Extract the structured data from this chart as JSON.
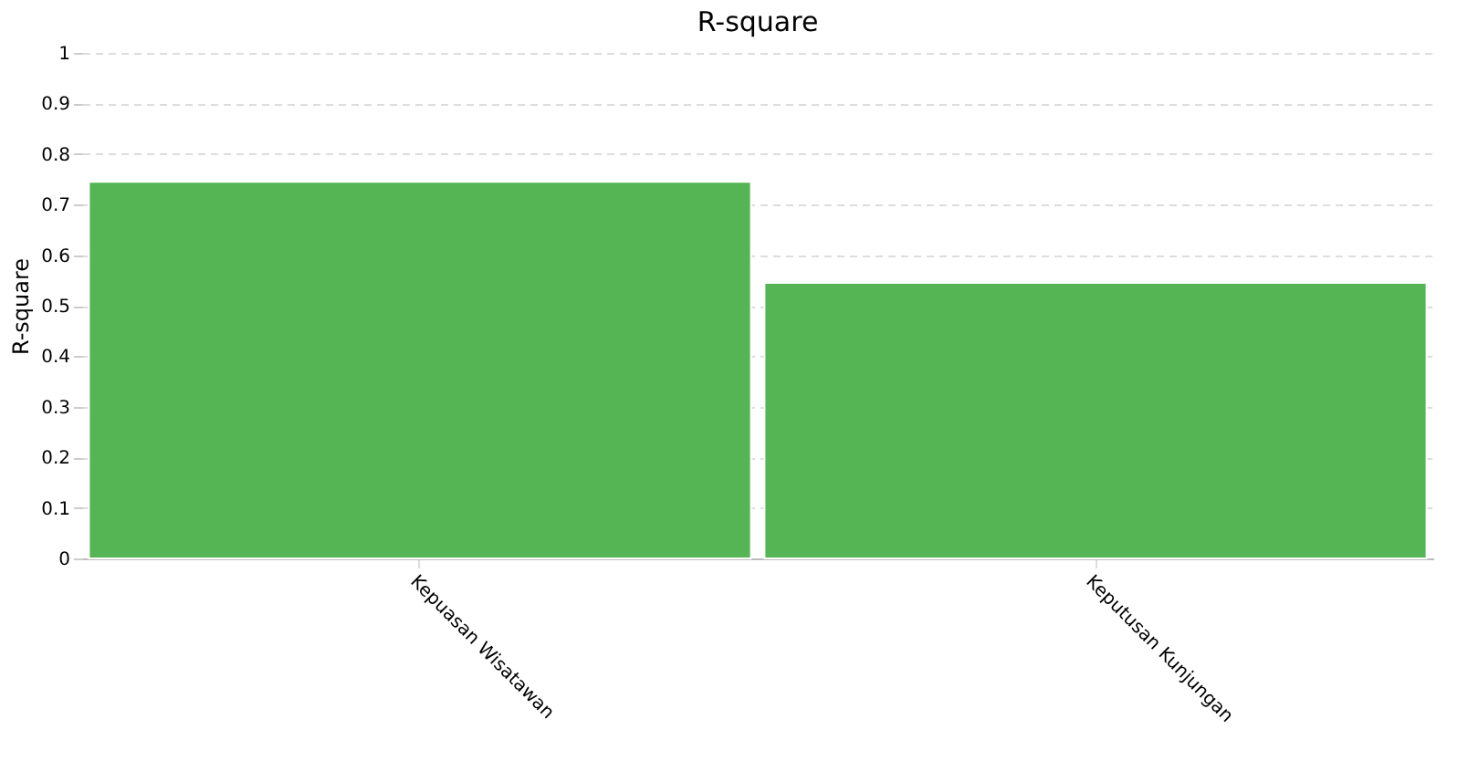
{
  "chart_data": {
    "type": "bar",
    "title": "R-square",
    "ylabel": "R-square",
    "categories": [
      "Kepuasan Wisatawan",
      "Keputusan Kunjungan"
    ],
    "values": [
      0.745,
      0.545
    ],
    "color": "#55b555",
    "ylim": [
      0,
      1
    ],
    "yticks": [
      0,
      0.1,
      0.2,
      0.3,
      0.4,
      0.5,
      0.6,
      0.7,
      0.8,
      0.9,
      1
    ],
    "grid": "y"
  }
}
